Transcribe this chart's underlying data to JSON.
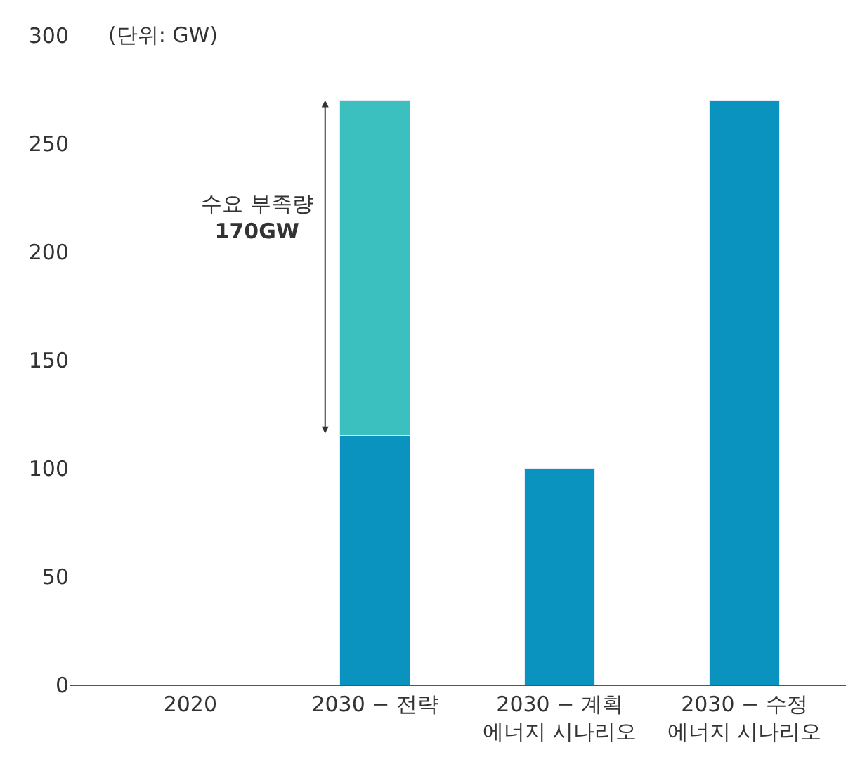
{
  "chart_data": {
    "type": "bar",
    "stacked": true,
    "ylabel": "(단위: GW)",
    "categories": [
      "2020",
      "2030 − 전략",
      "2030 − 계획\n에너지 시나리오",
      "2030 − 수정\n에너지 시나리오"
    ],
    "series": [
      {
        "color": "#0b93c0",
        "values": [
          null,
          115,
          100,
          270
        ]
      },
      {
        "color": "#3bbfbf",
        "values": [
          null,
          155,
          null,
          null
        ]
      }
    ],
    "ylim": [
      0,
      300
    ],
    "yticks": [
      0,
      50,
      100,
      150,
      200,
      250,
      300
    ],
    "legend": false,
    "annotations": [
      "수요 부족량\n170GW"
    ]
  }
}
